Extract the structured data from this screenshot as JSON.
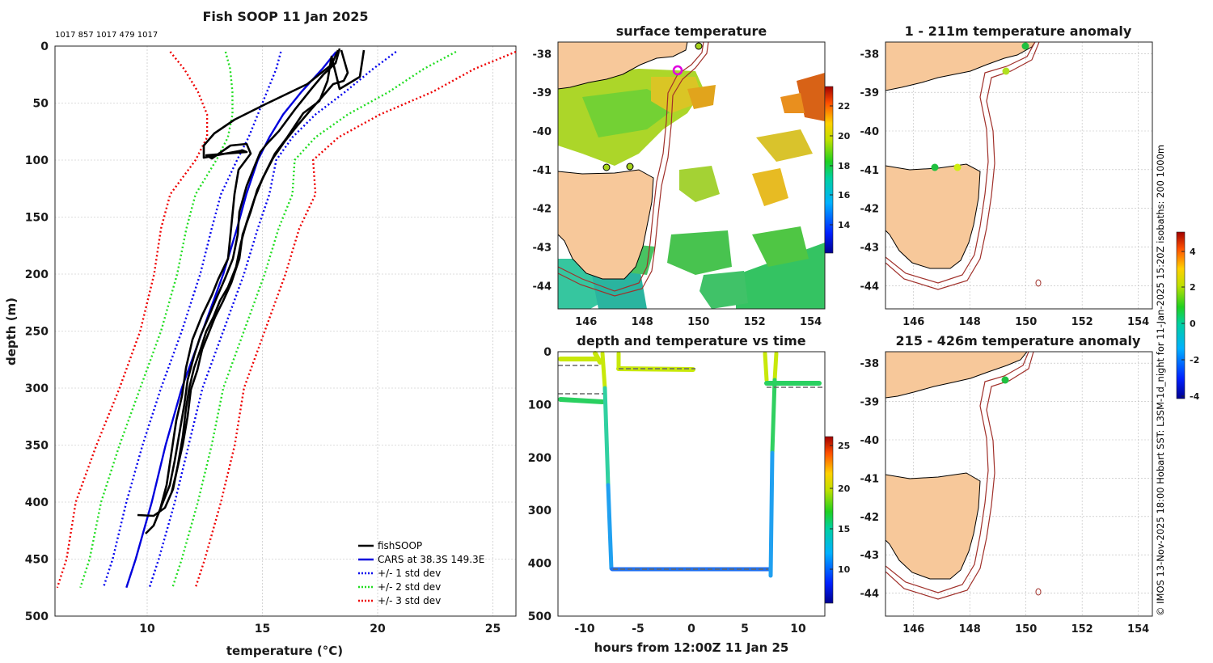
{
  "figure": {
    "credit": "© IMOS 13-Nov-2025 18:00 Hobart SST: L3SM-1d_night for 11-Jan-2025 15:20Z isobaths: 200  1000m"
  },
  "chart_data": [
    {
      "id": "profile",
      "type": "line",
      "title": "Fish SOOP 11 Jan 2025",
      "subtitle": "1017 857 1017 479 1017",
      "xlabel": "temperature (°C)",
      "ylabel": "depth (m)",
      "xlim": [
        6,
        26
      ],
      "ylim": [
        500,
        0
      ],
      "xticks": [
        10,
        15,
        20,
        25
      ],
      "yticks": [
        0,
        50,
        100,
        150,
        200,
        250,
        300,
        350,
        400,
        450,
        500
      ],
      "grid": true,
      "legend_position": "bottom-right",
      "legend": [
        "fishSOOP",
        "CARS at 38.3S 149.3E",
        "+/- 1 std dev",
        "+/- 2 std dev",
        "+/- 3 std dev"
      ],
      "colors": {
        "fishsoop": "#000000",
        "cars": "#0000dd",
        "sd1": "#0000ee",
        "sd2": "#22dd22",
        "sd3": "#ee0000"
      },
      "series": [
        {
          "name": "CARS at 38.3S 149.3E",
          "depths": [
            5,
            20,
            40,
            60,
            80,
            100,
            130,
            160,
            200,
            250,
            300,
            350,
            400,
            450,
            475
          ],
          "temps": [
            18.2,
            17.6,
            16.7,
            15.9,
            15.3,
            14.8,
            14.3,
            13.9,
            13.3,
            12.4,
            11.5,
            10.8,
            10.2,
            9.5,
            9.1
          ]
        },
        {
          "name": "+1 std dev",
          "depths": [
            5,
            20,
            40,
            60,
            80,
            100,
            130,
            160,
            200,
            250,
            300,
            350,
            400,
            450,
            475
          ],
          "temps": [
            15.8,
            15.6,
            15.2,
            14.8,
            14.4,
            13.9,
            13.2,
            12.8,
            12.3,
            11.5,
            10.6,
            9.8,
            9.1,
            8.5,
            8.1
          ]
        },
        {
          "name": "-1 std dev",
          "depths": [
            5,
            20,
            40,
            60,
            80,
            100,
            130,
            160,
            200,
            250,
            300,
            350,
            400,
            450,
            475
          ],
          "temps": [
            20.8,
            19.8,
            18.6,
            17.3,
            16.3,
            15.6,
            15.3,
            14.8,
            14.2,
            13.3,
            12.4,
            11.8,
            11.2,
            10.5,
            10.1
          ]
        }
      ]
    },
    {
      "id": "sst",
      "type": "heatmap",
      "title": "surface temperature",
      "xticks": [
        "146",
        "148",
        "150",
        "152",
        "154"
      ],
      "yticks": [
        "-38",
        "-39",
        "-40",
        "-41",
        "-42",
        "-43",
        "-44"
      ],
      "colorbar_ticks": [
        "22",
        "20",
        "18",
        "16",
        "14"
      ]
    },
    {
      "id": "timeseries",
      "type": "scatter",
      "title": "depth and temperature vs time",
      "xlabel": "hours from 12:00Z 11 Jan 25",
      "xticks": [
        "-10",
        "-5",
        "0",
        "5",
        "10"
      ],
      "yticks": [
        "0",
        "100",
        "200",
        "300",
        "400",
        "500"
      ],
      "colorbar_ticks": [
        "25",
        "20",
        "15",
        "10"
      ]
    },
    {
      "id": "anom1",
      "type": "scatter",
      "title": "1 - 211m temperature anomaly",
      "xticks": [
        "146",
        "148",
        "150",
        "152",
        "154"
      ],
      "yticks": [
        "-38",
        "-39",
        "-40",
        "-41",
        "-42",
        "-43",
        "-44"
      ],
      "colorbar_ticks": [
        "4",
        "2",
        "0",
        "-2",
        "-4"
      ]
    },
    {
      "id": "anom2",
      "type": "scatter",
      "title": "215 - 426m temperature anomaly",
      "xticks": [
        "146",
        "148",
        "150",
        "152",
        "154"
      ],
      "yticks": [
        "-38",
        "-39",
        "-40",
        "-41",
        "-42",
        "-43",
        "-44"
      ]
    }
  ]
}
